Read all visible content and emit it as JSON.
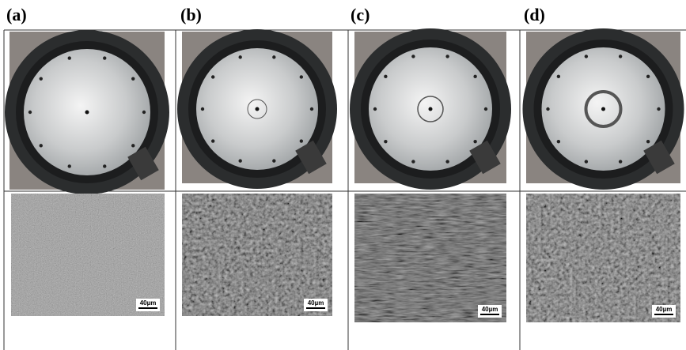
{
  "panels": [
    {
      "label": "(a)",
      "scale_bar": "40µm"
    },
    {
      "label": "(b)",
      "scale_bar": "40µm"
    },
    {
      "label": "(c)",
      "scale_bar": "40µm"
    },
    {
      "label": "(d)",
      "scale_bar": "40µm"
    }
  ]
}
